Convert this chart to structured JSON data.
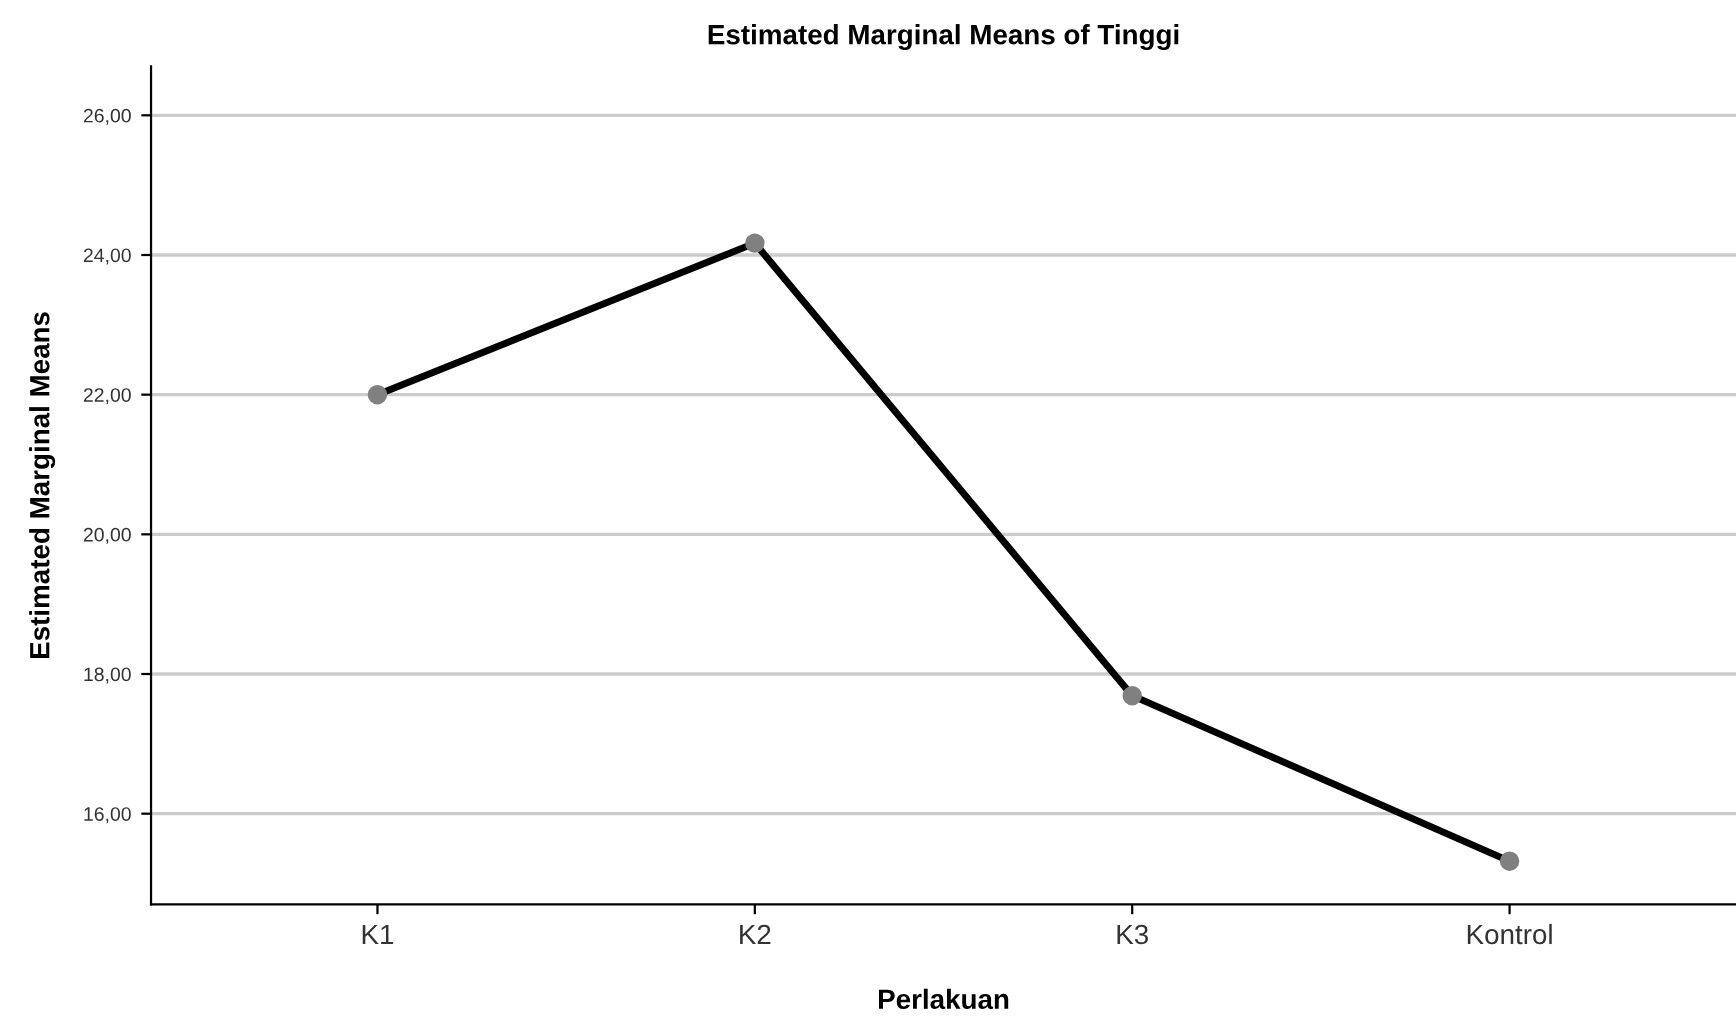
{
  "chart_data": {
    "type": "line",
    "title": "Estimated Marginal Means of Tinggi",
    "xlabel": "Perlakuan",
    "ylabel": "Estimated Marginal Means",
    "categories": [
      "K1",
      "K2",
      "K3",
      "Kontrol"
    ],
    "series": [
      {
        "color": "#000000",
        "values": [
          22.0,
          24.17,
          17.69,
          15.32
        ]
      }
    ],
    "ylim": [
      14.7,
      26.7
    ],
    "yticks": [
      {
        "value": 16,
        "label": "16,00"
      },
      {
        "value": 18,
        "label": "18,00"
      },
      {
        "value": 20,
        "label": "20,00"
      },
      {
        "value": 22,
        "label": "22,00"
      },
      {
        "value": 24,
        "label": "24,00"
      },
      {
        "value": 26,
        "label": "26,00"
      }
    ],
    "grid": "y",
    "marker": "circle",
    "line_style": "solid",
    "legend": false
  }
}
